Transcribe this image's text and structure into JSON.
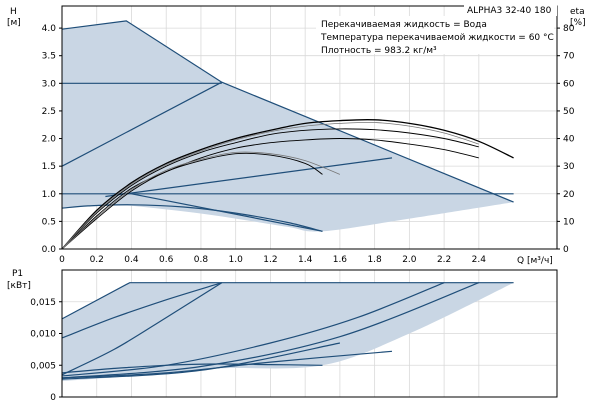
{
  "chart_data": [
    {
      "type": "line",
      "model_label": "ALPHA3 32-40 180",
      "info_lines": [
        "Перекачиваемая жидкость = Вода",
        "Температура перекачиваемой жидкости = 60 °C",
        "Плотность = 983.2 кг/м³"
      ],
      "left_axis": {
        "label": "H",
        "unit": "[м]",
        "ylim": [
          0,
          4.4
        ],
        "ticks": [
          "0.0",
          "0.5",
          "1.0",
          "1.5",
          "2.0",
          "2.5",
          "3.0",
          "3.5",
          "4.0"
        ],
        "tick_values": [
          0,
          0.5,
          1,
          1.5,
          2,
          2.5,
          3,
          3.5,
          4
        ]
      },
      "right_axis": {
        "label": "eta",
        "unit": "[%]",
        "ylim": [
          0,
          88
        ],
        "ticks": [
          "0",
          "10",
          "20",
          "30",
          "40",
          "50",
          "60",
          "70",
          "80"
        ],
        "tick_values": [
          0,
          10,
          20,
          30,
          40,
          50,
          60,
          70,
          80
        ]
      },
      "x_axis": {
        "label": "Q",
        "unit": "[м³/ч]",
        "xlim": [
          0,
          2.85
        ],
        "ticks": [
          "0",
          "0.2",
          "0.4",
          "0.6",
          "0.8",
          "1.0",
          "1.2",
          "1.4",
          "1.6",
          "1.8",
          "2.0",
          "2.2",
          "2.4"
        ],
        "tick_values": [
          0,
          0.2,
          0.4,
          0.6,
          0.8,
          1.0,
          1.2,
          1.4,
          1.6,
          1.8,
          2.0,
          2.2,
          2.4
        ]
      },
      "grid": true,
      "region": {
        "upper": [
          [
            0,
            3.98
          ],
          [
            0.37,
            4.13
          ],
          [
            0.92,
            3.02
          ],
          [
            2.6,
            0.85
          ]
        ],
        "lower": [
          [
            0,
            0.74
          ],
          [
            0.3,
            0.8
          ],
          [
            0.7,
            0.68
          ],
          [
            1.0,
            0.55
          ],
          [
            1.3,
            0.4
          ],
          [
            1.5,
            0.32
          ],
          [
            2.0,
            0.55
          ],
          [
            2.6,
            0.85
          ]
        ]
      },
      "series": [
        {
          "style": "blue",
          "x": [
            0,
            0.37,
            0.92,
            2.6
          ],
          "y": [
            3.98,
            4.13,
            3.02,
            0.85
          ]
        },
        {
          "style": "blue",
          "x": [
            0,
            0.92
          ],
          "y": [
            3.0,
            3.0
          ]
        },
        {
          "style": "blue",
          "x": [
            0,
            0.92
          ],
          "y": [
            1.5,
            3.02
          ]
        },
        {
          "style": "blue",
          "x": [
            0,
            2.6
          ],
          "y": [
            1.0,
            1.0
          ]
        },
        {
          "style": "blue",
          "x": [
            0.25,
            1.9
          ],
          "y": [
            0.95,
            1.65
          ]
        },
        {
          "style": "blue",
          "x": [
            0.4,
            1.5
          ],
          "y": [
            1.0,
            0.32
          ]
        },
        {
          "style": "blue",
          "x": [
            0,
            0.15,
            0.4,
            0.7,
            1.0,
            1.3,
            1.5
          ],
          "y": [
            0.74,
            0.78,
            0.8,
            0.76,
            0.65,
            0.48,
            0.32
          ]
        },
        {
          "style": "black",
          "x": [
            0,
            0.2,
            0.4,
            0.6,
            0.8,
            1.0,
            1.2,
            1.4,
            1.6,
            1.8,
            2.0,
            2.2,
            2.4,
            2.6
          ],
          "y": [
            0,
            14,
            24,
            31,
            36,
            40,
            43,
            45.5,
            46.5,
            46.8,
            45.5,
            43,
            39,
            33
          ]
        },
        {
          "style": "black-thin",
          "x": [
            0,
            0.2,
            0.4,
            0.6,
            0.8,
            1.0,
            1.2,
            1.4,
            1.6,
            1.8,
            2.0,
            2.2,
            2.4
          ],
          "y": [
            0,
            13,
            23,
            30,
            35,
            38.5,
            41.5,
            43,
            43.5,
            43.2,
            42,
            40,
            37
          ]
        },
        {
          "style": "black-thin",
          "x": [
            0,
            0.2,
            0.4,
            0.6,
            0.8,
            1.0,
            1.2,
            1.4,
            1.6,
            1.8,
            2.0,
            2.2,
            2.4
          ],
          "y": [
            0,
            12,
            22,
            28,
            33,
            36.5,
            38.5,
            39.5,
            40,
            39.5,
            38,
            36,
            33
          ]
        },
        {
          "style": "black-thin",
          "x": [
            0,
            0.2,
            0.4,
            0.6,
            0.8,
            1.0,
            1.2,
            1.4,
            1.5
          ],
          "y": [
            0,
            11,
            21,
            28,
            32,
            34.5,
            34,
            31,
            27
          ]
        },
        {
          "style": "gray",
          "x": [
            0,
            0.2,
            0.4,
            0.6,
            0.8,
            1.0,
            1.2,
            1.4,
            1.6,
            1.8,
            2.0,
            2.2,
            2.4
          ],
          "y": [
            0,
            13.5,
            23.5,
            30.5,
            35.5,
            39.5,
            42.5,
            44.5,
            45.5,
            45.8,
            44.5,
            42,
            38
          ]
        },
        {
          "style": "gray",
          "x": [
            0,
            0.2,
            0.4,
            0.6,
            0.8,
            1.0,
            1.2,
            1.4,
            1.6
          ],
          "y": [
            0,
            11.5,
            21.5,
            28.5,
            32.5,
            35,
            34.5,
            32,
            27
          ]
        }
      ]
    },
    {
      "type": "line",
      "left_axis": {
        "label": "P1",
        "unit": "[кВт]",
        "ylim": [
          0,
          0.02
        ],
        "ticks": [
          "0",
          "0,005",
          "0,010",
          "0,015"
        ],
        "tick_values": [
          0,
          0.005,
          0.01,
          0.015
        ]
      },
      "x_axis": {
        "xlim": [
          0,
          2.85
        ]
      },
      "grid": true,
      "region": {
        "upper": [
          [
            0,
            0.0123
          ],
          [
            0.39,
            0.018
          ],
          [
            2.6,
            0.018
          ]
        ],
        "lower": [
          [
            0,
            0.0025
          ],
          [
            0.5,
            0.0035
          ],
          [
            0.9,
            0.0045
          ],
          [
            1.5,
            0.005
          ],
          [
            2.0,
            0.01
          ],
          [
            2.6,
            0.018
          ]
        ]
      },
      "series": [
        {
          "style": "blue",
          "x": [
            0,
            0.39,
            2.6
          ],
          "y": [
            0.0123,
            0.018,
            0.018
          ]
        },
        {
          "style": "blue",
          "x": [
            0,
            0.3,
            0.6,
            0.92
          ],
          "y": [
            0.0093,
            0.0125,
            0.0153,
            0.018
          ]
        },
        {
          "style": "blue",
          "x": [
            0,
            0.3,
            0.6,
            0.92
          ],
          "y": [
            0.0035,
            0.0075,
            0.0125,
            0.018
          ]
        },
        {
          "style": "blue",
          "x": [
            0,
            0.6,
            1.2,
            1.7,
            2.2
          ],
          "y": [
            0.0033,
            0.005,
            0.0085,
            0.0125,
            0.018
          ]
        },
        {
          "style": "blue",
          "x": [
            0,
            0.8,
            1.6,
            2.4
          ],
          "y": [
            0.003,
            0.0048,
            0.0095,
            0.018
          ]
        },
        {
          "style": "blue",
          "x": [
            0,
            0.8,
            1.6
          ],
          "y": [
            0.0028,
            0.0042,
            0.0085
          ]
        },
        {
          "style": "blue",
          "x": [
            0,
            0.6,
            1.2,
            1.9
          ],
          "y": [
            0.003,
            0.0038,
            0.0055,
            0.0072
          ]
        },
        {
          "style": "blue",
          "x": [
            0,
            0.3,
            0.6,
            0.9,
            1.2,
            1.5
          ],
          "y": [
            0.0038,
            0.0045,
            0.005,
            0.0052,
            0.0051,
            0.005
          ]
        }
      ]
    }
  ]
}
